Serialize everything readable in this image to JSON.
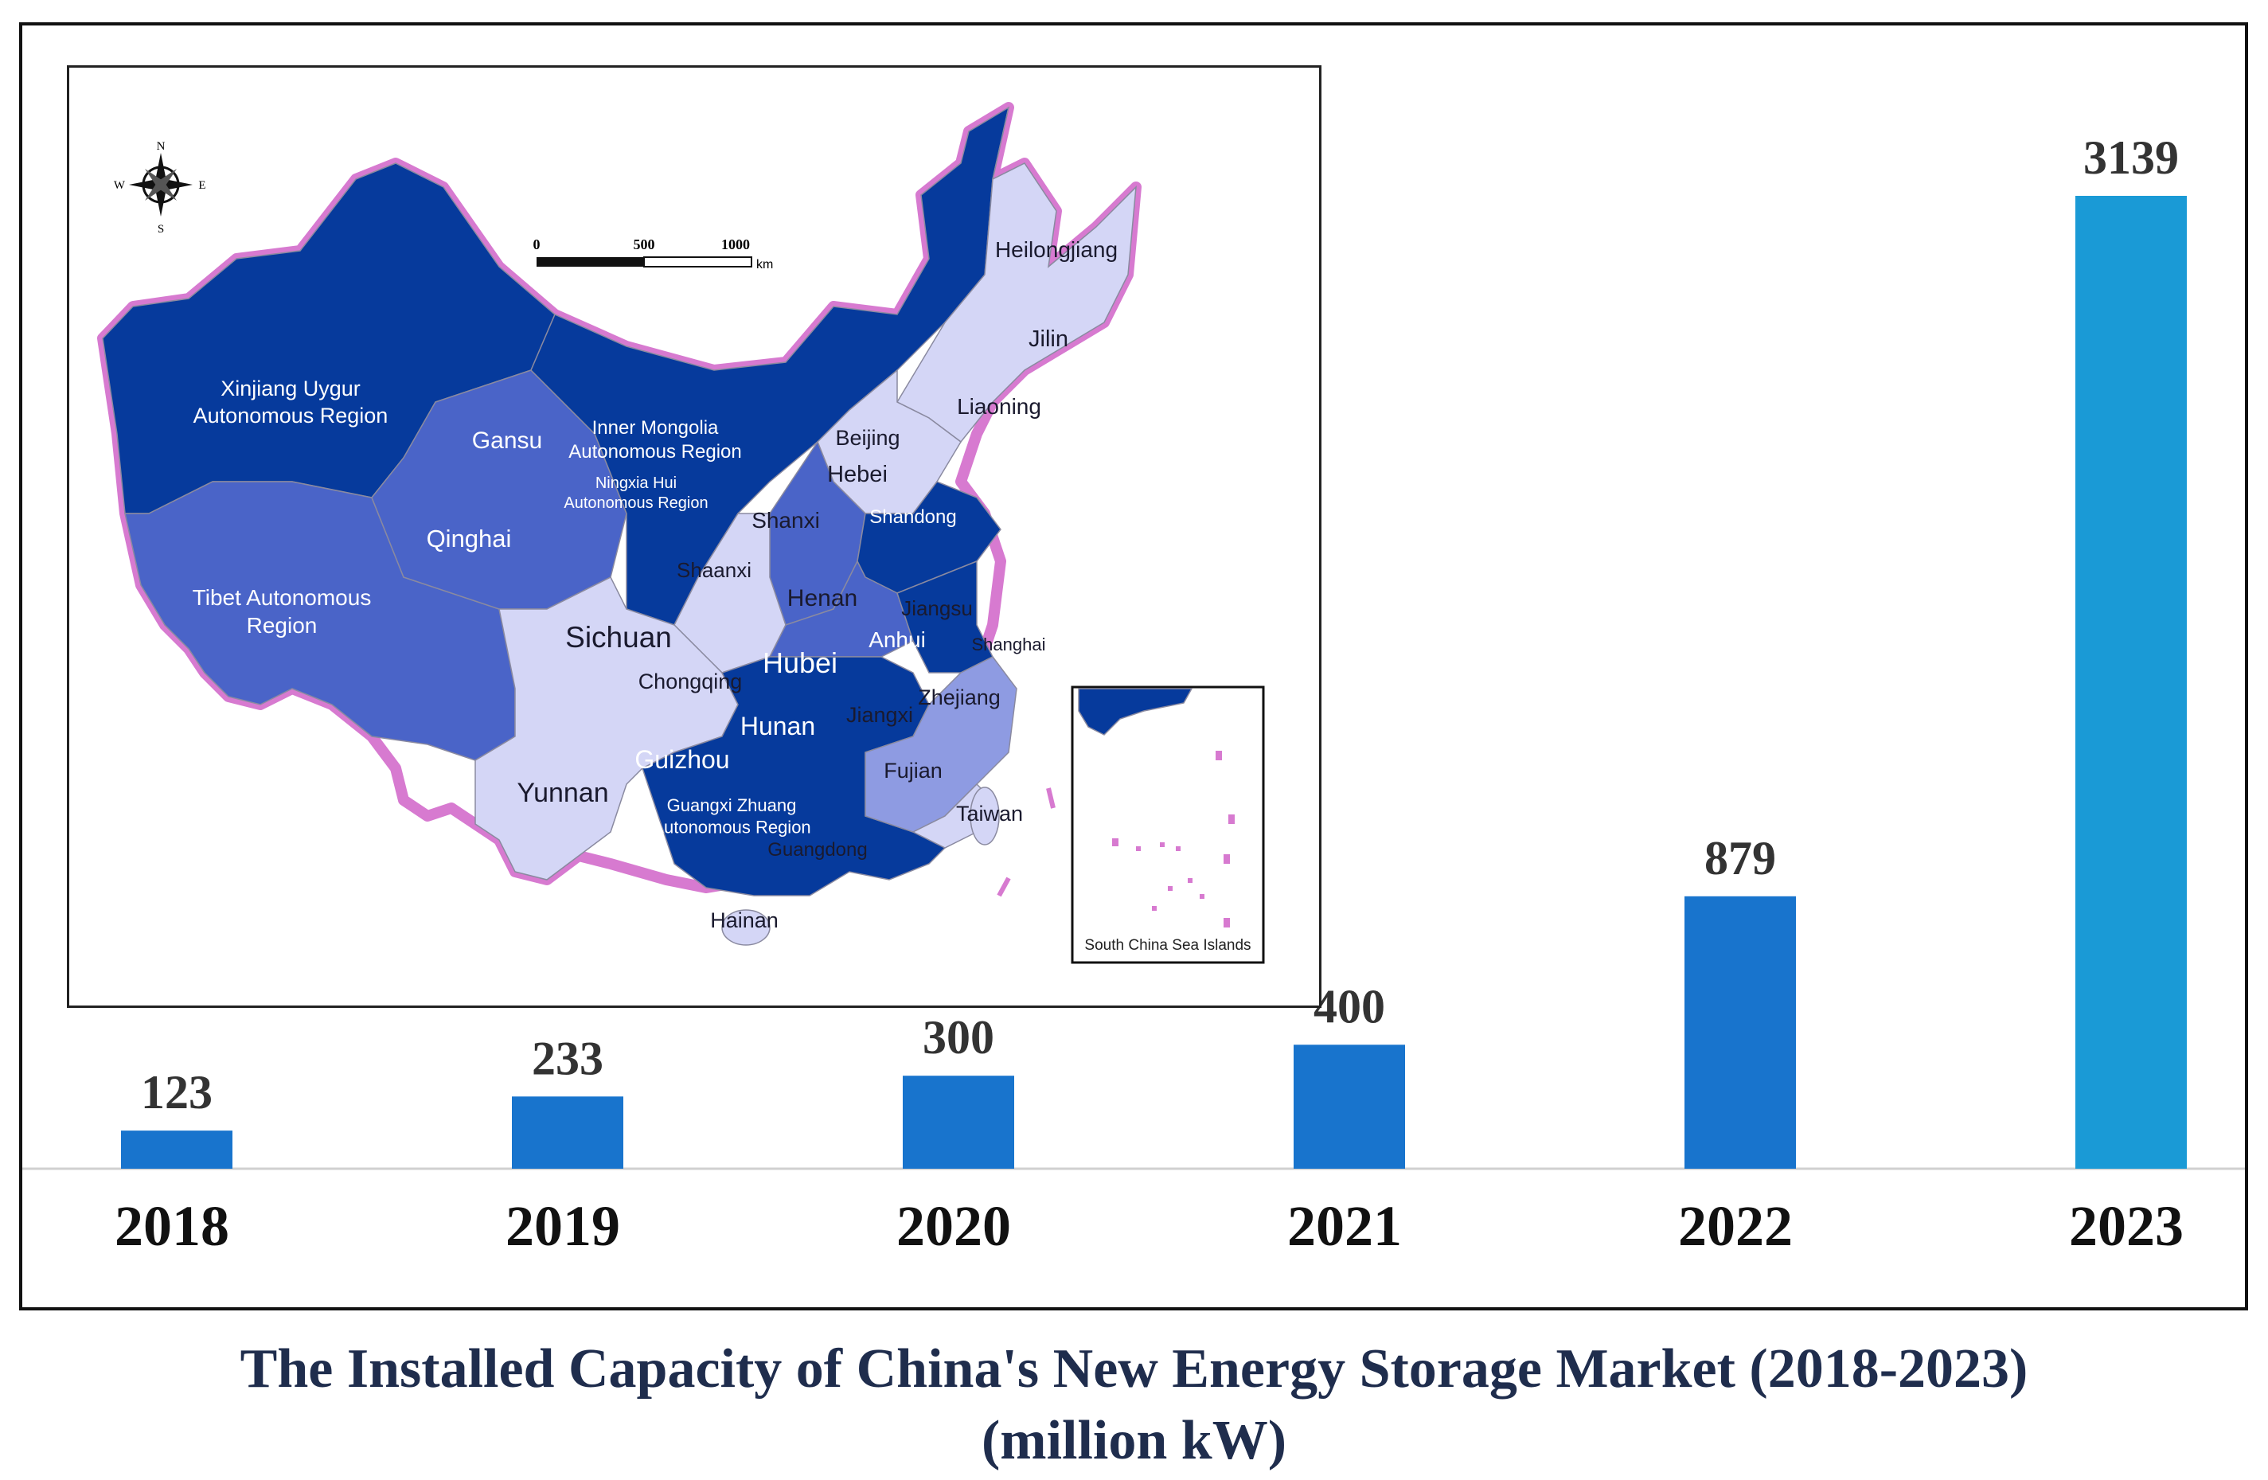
{
  "chart_data": {
    "type": "bar",
    "title": "The Installed Capacity of China's New Energy Storage Market (2018-2023)",
    "subtitle": "(million kW)",
    "categories": [
      "2018",
      "2019",
      "2020",
      "2021",
      "2022",
      "2023"
    ],
    "values": [
      123,
      233,
      300,
      400,
      879,
      3139
    ],
    "data_labels": [
      "123",
      "233",
      "300",
      "400",
      "879",
      "3139"
    ],
    "colors": [
      "#1874cd",
      "#1874cd",
      "#1874cd",
      "#1874cd",
      "#1874cd",
      "#1a9ad6"
    ],
    "xlabel": "",
    "ylabel": "",
    "ylim": [
      0,
      3139
    ],
    "grid": false,
    "legend": "none"
  },
  "map": {
    "compass": {
      "n": "N",
      "s": "S",
      "e": "E",
      "w": "W"
    },
    "scale": {
      "ticks": [
        "0",
        "500",
        "1000"
      ],
      "unit": "km"
    },
    "inset_label": "South China Sea Islands",
    "shade_colors": {
      "dark": "#063a9c",
      "mid": "#4a64c8",
      "light_mid": "#8e9be2",
      "light": "#d4d6f6",
      "border": "#d77ad0",
      "sea": "#18a6e6"
    },
    "regions": [
      {
        "name": "Xinjiang Uygur",
        "name2": "Autonomous Region",
        "tone": "light",
        "size": 27
      },
      {
        "name": "Gansu",
        "name2": "",
        "tone": "light",
        "size": 30
      },
      {
        "name": "Inner Mongolia",
        "name2": "Autonomous Region",
        "tone": "light",
        "size": 24
      },
      {
        "name": "Ningxia Hui",
        "name2": "Autonomous Region",
        "tone": "light",
        "size": 20
      },
      {
        "name": "Qinghai",
        "name2": "",
        "tone": "light",
        "size": 31
      },
      {
        "name": "Tibet Autonomous",
        "name2": "Region",
        "tone": "light",
        "size": 28
      },
      {
        "name": "Heilongjiang",
        "name2": "",
        "tone": "dark",
        "size": 28
      },
      {
        "name": "Jilin",
        "name2": "",
        "tone": "dark",
        "size": 29
      },
      {
        "name": "Liaoning",
        "name2": "",
        "tone": "dark",
        "size": 28
      },
      {
        "name": "Beijing",
        "name2": "",
        "tone": "dark",
        "size": 27
      },
      {
        "name": "Hebei",
        "name2": "",
        "tone": "dark",
        "size": 29
      },
      {
        "name": "Shanxi",
        "name2": "",
        "tone": "dark",
        "size": 28
      },
      {
        "name": "Shandong",
        "name2": "",
        "tone": "light",
        "size": 24
      },
      {
        "name": "Shaanxi",
        "name2": "",
        "tone": "dark",
        "size": 26
      },
      {
        "name": "Henan",
        "name2": "",
        "tone": "dark",
        "size": 30
      },
      {
        "name": "Jiangsu",
        "name2": "",
        "tone": "dark",
        "size": 26
      },
      {
        "name": "Anhui",
        "name2": "",
        "tone": "light",
        "size": 28
      },
      {
        "name": "Shanghai",
        "name2": "",
        "tone": "dark",
        "size": 22
      },
      {
        "name": "Sichuan",
        "name2": "",
        "tone": "dark",
        "size": 37
      },
      {
        "name": "Chongqing",
        "name2": "",
        "tone": "dark",
        "size": 27
      },
      {
        "name": "Hubei",
        "name2": "",
        "tone": "light",
        "size": 36
      },
      {
        "name": "Zhejiang",
        "name2": "",
        "tone": "dark",
        "size": 27
      },
      {
        "name": "Hunan",
        "name2": "",
        "tone": "light",
        "size": 32
      },
      {
        "name": "Jiangxi",
        "name2": "",
        "tone": "dark",
        "size": 27
      },
      {
        "name": "Guizhou",
        "name2": "",
        "tone": "light",
        "size": 32
      },
      {
        "name": "Fujian",
        "name2": "",
        "tone": "dark",
        "size": 27
      },
      {
        "name": "Yunnan",
        "name2": "",
        "tone": "dark",
        "size": 34
      },
      {
        "name": "Taiwan",
        "name2": "",
        "tone": "dark",
        "size": 27
      },
      {
        "name": "Guangxi Zhuang",
        "name2": "Autonomous Region",
        "tone": "light",
        "size": 22
      },
      {
        "name": "Guangdong",
        "name2": "",
        "tone": "dark",
        "size": 24
      },
      {
        "name": "Hainan",
        "name2": "",
        "tone": "dark",
        "size": 27
      }
    ]
  }
}
